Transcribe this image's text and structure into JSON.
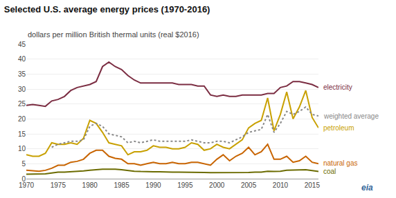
{
  "chart_data": {
    "type": "line",
    "title": "Selected U.S. average energy prices (1970-2016)",
    "subtitle": "dollars per million British thermal units (real $2016)",
    "x": [
      1970,
      1971,
      1972,
      1973,
      1974,
      1975,
      1976,
      1977,
      1978,
      1979,
      1980,
      1981,
      1982,
      1983,
      1984,
      1985,
      1986,
      1987,
      1988,
      1989,
      1990,
      1991,
      1992,
      1993,
      1994,
      1995,
      1996,
      1997,
      1998,
      1999,
      2000,
      2001,
      2002,
      2003,
      2004,
      2005,
      2006,
      2007,
      2008,
      2009,
      2010,
      2011,
      2012,
      2013,
      2014,
      2015,
      2016
    ],
    "series": [
      {
        "name": "electricity",
        "color": "#7B2D42",
        "line_style": "solid",
        "values": [
          24.5,
          24.8,
          24.5,
          24.2,
          26.0,
          26.5,
          27.5,
          29.5,
          30.5,
          31.0,
          31.5,
          32.5,
          37.5,
          39.0,
          37.5,
          36.5,
          34.5,
          33.0,
          32.0,
          32.0,
          32.0,
          32.0,
          32.0,
          32.0,
          31.5,
          31.5,
          31.5,
          31.0,
          31.0,
          28.0,
          27.5,
          28.0,
          27.5,
          27.5,
          28.0,
          28.0,
          28.0,
          28.0,
          28.5,
          28.5,
          30.5,
          31.0,
          32.5,
          32.5,
          32.0,
          31.5,
          30.5
        ]
      },
      {
        "name": "petroleum",
        "color": "#C8A000",
        "line_style": "solid",
        "values": [
          8.0,
          7.5,
          7.5,
          8.5,
          12.0,
          11.5,
          11.5,
          12.0,
          11.5,
          13.5,
          19.5,
          18.5,
          15.5,
          12.0,
          11.5,
          11.0,
          8.0,
          9.0,
          9.0,
          9.5,
          11.0,
          10.5,
          10.5,
          10.0,
          10.0,
          10.5,
          12.0,
          11.5,
          9.5,
          10.0,
          11.5,
          10.5,
          10.0,
          11.5,
          13.0,
          17.0,
          18.5,
          19.5,
          27.0,
          16.0,
          21.5,
          29.0,
          20.0,
          24.0,
          29.5,
          20.5,
          17.0
        ]
      },
      {
        "name": "weighted average",
        "color": "#888888",
        "line_style": "dotted",
        "values": [
          null,
          null,
          null,
          null,
          10.5,
          11.5,
          12.0,
          12.5,
          12.5,
          13.0,
          17.5,
          18.5,
          17.5,
          15.0,
          14.5,
          14.0,
          12.0,
          12.5,
          12.0,
          12.5,
          13.0,
          12.5,
          12.5,
          12.5,
          12.5,
          12.5,
          13.0,
          12.5,
          12.0,
          12.0,
          12.5,
          12.5,
          12.0,
          13.0,
          14.0,
          15.5,
          16.0,
          16.5,
          21.5,
          15.5,
          18.5,
          22.5,
          21.5,
          22.5,
          24.0,
          21.5,
          21.0
        ]
      },
      {
        "name": "natural gas",
        "color": "#C86400",
        "line_style": "solid",
        "values": [
          2.8,
          2.6,
          2.5,
          2.8,
          3.5,
          4.5,
          4.5,
          5.5,
          5.8,
          6.5,
          8.5,
          9.5,
          9.5,
          7.5,
          6.8,
          6.5,
          5.0,
          5.0,
          4.5,
          5.0,
          5.5,
          5.0,
          5.0,
          5.5,
          5.0,
          5.0,
          5.5,
          5.5,
          5.0,
          4.5,
          6.5,
          8.0,
          6.0,
          7.5,
          8.5,
          10.5,
          8.0,
          9.0,
          11.5,
          6.5,
          6.5,
          7.5,
          5.5,
          6.0,
          7.5,
          5.5,
          5.0
        ]
      },
      {
        "name": "coal",
        "color": "#6B6B00",
        "line_style": "solid",
        "values": [
          1.5,
          1.5,
          1.5,
          1.6,
          1.9,
          2.2,
          2.2,
          2.3,
          2.5,
          2.6,
          2.8,
          3.0,
          3.2,
          3.2,
          3.2,
          3.0,
          2.7,
          2.5,
          2.4,
          2.3,
          2.3,
          2.3,
          2.2,
          2.2,
          2.2,
          2.2,
          2.2,
          2.2,
          2.1,
          2.0,
          2.0,
          2.0,
          2.0,
          2.0,
          2.0,
          2.1,
          2.2,
          2.2,
          2.5,
          2.4,
          2.5,
          2.8,
          2.9,
          2.9,
          3.0,
          2.7,
          2.4
        ]
      }
    ],
    "xlim": [
      1970,
      2016
    ],
    "xticks": [
      1970,
      1975,
      1980,
      1985,
      1990,
      1995,
      2000,
      2005,
      2010,
      2015
    ],
    "ylim": [
      0,
      45
    ],
    "yticks": [
      0,
      5,
      10,
      15,
      20,
      25,
      30,
      35,
      40,
      45
    ],
    "grid": true,
    "annotations": [
      "eia"
    ]
  }
}
